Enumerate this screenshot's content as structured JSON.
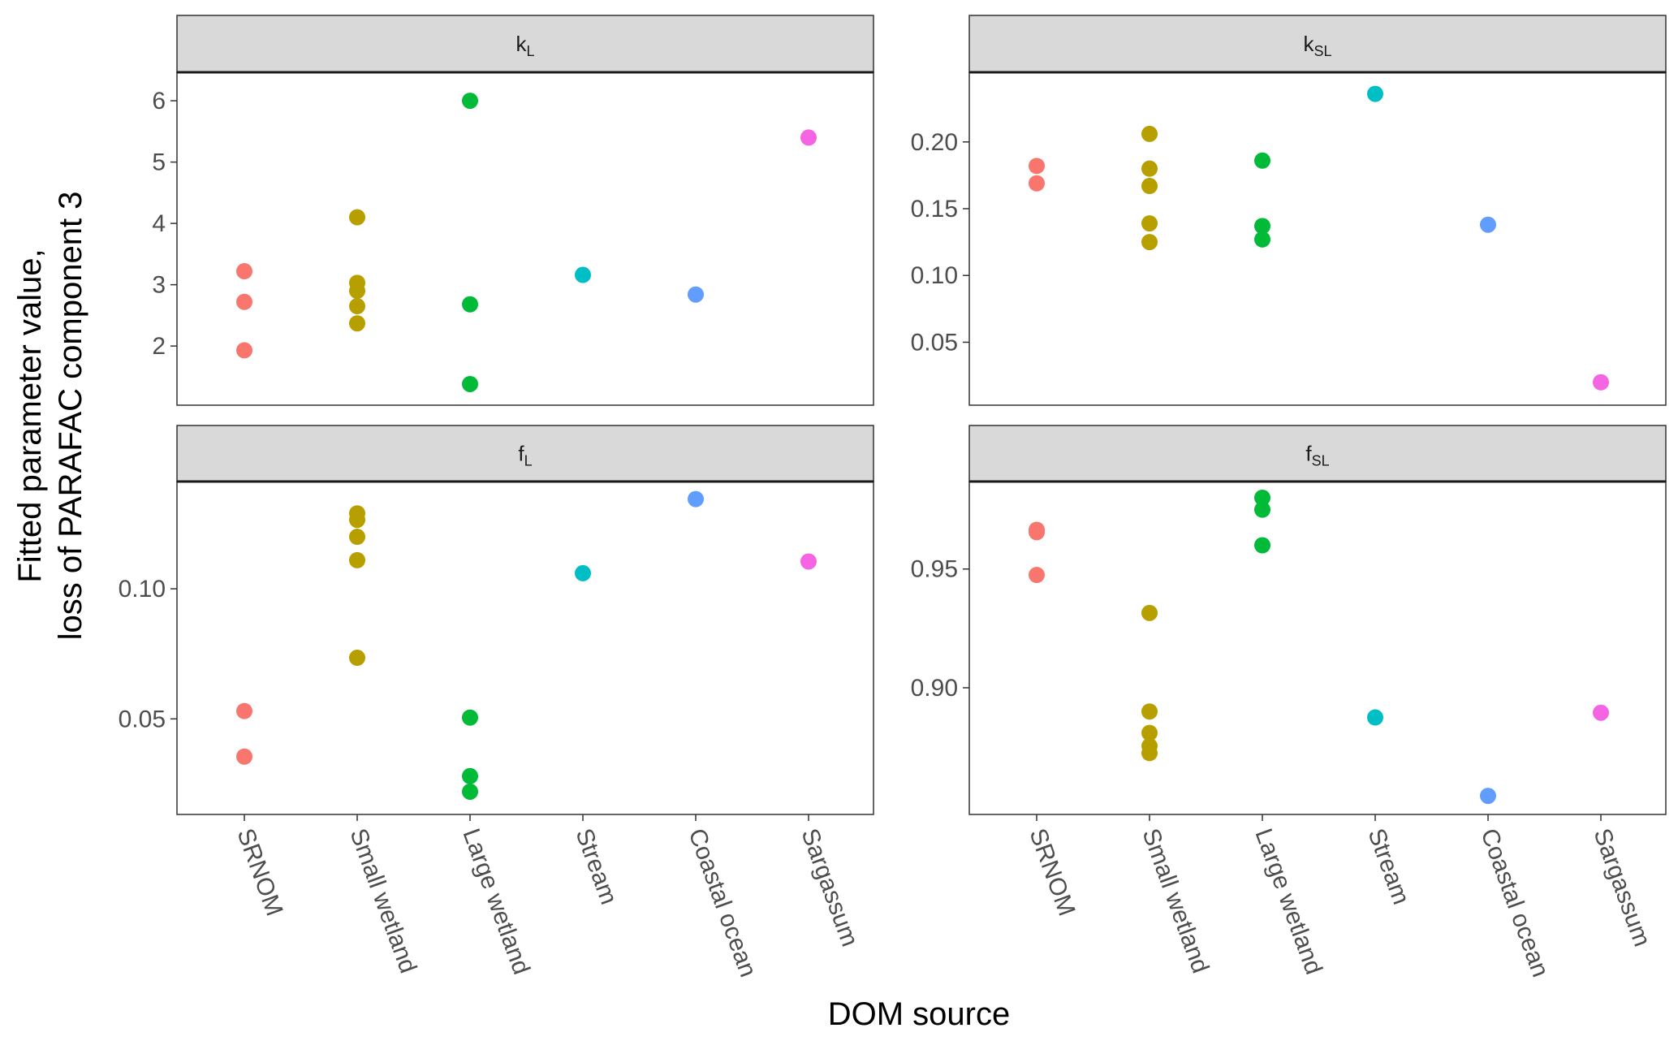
{
  "chart_data": {
    "type": "scatter",
    "xlabel": "DOM source",
    "ylabel_lines": [
      "Fitted parameter value,",
      "loss of PARAFAC component 3"
    ],
    "categories": [
      "SRNOM",
      "Small wetland",
      "Large wetland",
      "Stream",
      "Coastal ocean",
      "Sargassum"
    ],
    "category_colors": [
      "#F8766D",
      "#B79F00",
      "#00BA38",
      "#00BFC4",
      "#619CFF",
      "#F564E3"
    ],
    "grid": false,
    "legend": "none",
    "panels": [
      {
        "id": "kL",
        "strip": {
          "base": "k",
          "sub": "L"
        },
        "ylim": [
          1.3,
          6.2
        ],
        "yticks": [
          {
            "value": 2,
            "label": "2"
          },
          {
            "value": 3,
            "label": "3"
          },
          {
            "value": 4,
            "label": "4"
          },
          {
            "value": 5,
            "label": "5"
          },
          {
            "value": 6,
            "label": "6"
          }
        ],
        "points": [
          {
            "x": "SRNOM",
            "values": [
              3.22,
              2.72,
              1.93
            ]
          },
          {
            "x": "Small wetland",
            "values": [
              4.1,
              3.03,
              2.9,
              2.65,
              2.37
            ]
          },
          {
            "x": "Large wetland",
            "values": [
              6.0,
              2.68,
              1.38
            ]
          },
          {
            "x": "Stream",
            "values": [
              3.16
            ]
          },
          {
            "x": "Coastal ocean",
            "values": [
              2.84
            ]
          },
          {
            "x": "Sargassum",
            "values": [
              5.4
            ]
          }
        ]
      },
      {
        "id": "kSL",
        "strip": {
          "base": "k",
          "sub": "SL"
        },
        "ylim": [
          0.015,
          0.24
        ],
        "yticks": [
          {
            "value": 0.05,
            "label": "0.05"
          },
          {
            "value": 0.1,
            "label": "0.10"
          },
          {
            "value": 0.15,
            "label": "0.15"
          },
          {
            "value": 0.2,
            "label": "0.20"
          }
        ],
        "points": [
          {
            "x": "SRNOM",
            "values": [
              0.182,
              0.169
            ]
          },
          {
            "x": "Small wetland",
            "values": [
              0.206,
              0.18,
              0.167,
              0.139,
              0.125
            ]
          },
          {
            "x": "Large wetland",
            "values": [
              0.186,
              0.137,
              0.127
            ]
          },
          {
            "x": "Stream",
            "values": [
              0.236
            ]
          },
          {
            "x": "Coastal ocean",
            "values": [
              0.138
            ]
          },
          {
            "x": "Sargassum",
            "values": [
              0.02
            ]
          }
        ]
      },
      {
        "id": "fL",
        "strip": {
          "base": "f",
          "sub": "L"
        },
        "ylim": [
          0.0195,
          0.135
        ],
        "yticks": [
          {
            "value": 0.05,
            "label": "0.05"
          },
          {
            "value": 0.1,
            "label": "0.10"
          }
        ],
        "points": [
          {
            "x": "SRNOM",
            "values": [
              0.053,
              0.0355
            ]
          },
          {
            "x": "Small wetland",
            "values": [
              0.129,
              0.1265,
              0.12,
              0.111,
              0.0735
            ]
          },
          {
            "x": "Large wetland",
            "values": [
              0.0505,
              0.028,
              0.022
            ]
          },
          {
            "x": "Stream",
            "values": [
              0.106
            ]
          },
          {
            "x": "Coastal ocean",
            "values": [
              0.1345
            ]
          },
          {
            "x": "Sargassum",
            "values": [
              0.1105
            ]
          }
        ]
      },
      {
        "id": "fSL",
        "strip": {
          "base": "f",
          "sub": "SL"
        },
        "ylim": [
          0.8535,
          0.98
        ],
        "yticks": [
          {
            "value": 0.9,
            "label": "0.90"
          },
          {
            "value": 0.95,
            "label": "0.95"
          }
        ],
        "points": [
          {
            "x": "SRNOM",
            "values": [
              0.9665,
              0.9655,
              0.9475
            ]
          },
          {
            "x": "Small wetland",
            "values": [
              0.9315,
              0.89,
              0.881,
              0.8755,
              0.8725
            ]
          },
          {
            "x": "Large wetland",
            "values": [
              0.98,
              0.975,
              0.96
            ]
          },
          {
            "x": "Stream",
            "values": [
              0.8875
            ]
          },
          {
            "x": "Coastal ocean",
            "values": [
              0.8545
            ]
          },
          {
            "x": "Sargassum",
            "values": [
              0.8895
            ]
          }
        ]
      }
    ]
  }
}
